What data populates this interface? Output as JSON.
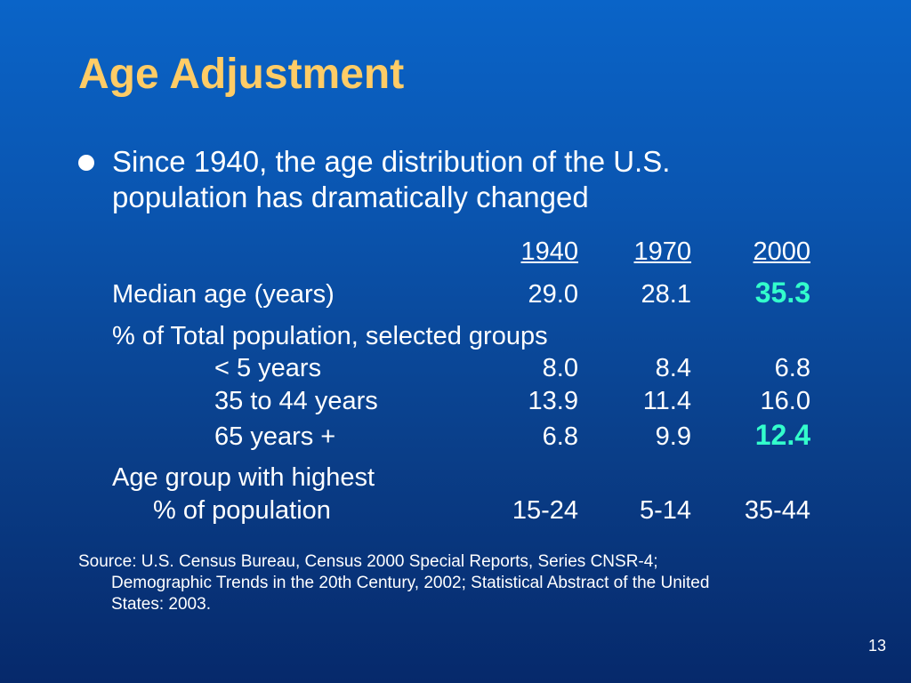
{
  "title": "Age Adjustment",
  "bullet": {
    "line1": "Since 1940, the age distribution of the U.S.",
    "line2": "population has dramatically changed"
  },
  "table": {
    "headers": [
      "1940",
      "1970",
      "2000"
    ],
    "median": {
      "label": "Median age (years)",
      "values": [
        "29.0",
        "28.1",
        "35.3"
      ]
    },
    "pct_heading": "% of Total population, selected groups",
    "groups": [
      {
        "label": "< 5 years",
        "values": [
          "8.0",
          "8.4",
          "6.8"
        ]
      },
      {
        "label": "35 to 44 years",
        "values": [
          "13.9",
          "11.4",
          "16.0"
        ]
      },
      {
        "label": "65 years +",
        "values": [
          "6.8",
          "9.9",
          "12.4"
        ]
      }
    ],
    "highest": {
      "label1": "Age group with highest",
      "label2": "% of population",
      "values": [
        "15-24",
        "5-14",
        "35-44"
      ]
    }
  },
  "source": {
    "line1": "Source: U.S. Census Bureau, Census 2000 Special Reports, Series CNSR-4;",
    "line2": "Demographic Trends in the 20th Century, 2002; Statistical Abstract of the United",
    "line3": "States: 2003."
  },
  "page_number": "13",
  "colors": {
    "title": "#ffcc66",
    "highlight": "#33ffcc",
    "background": "#0a55b0"
  }
}
